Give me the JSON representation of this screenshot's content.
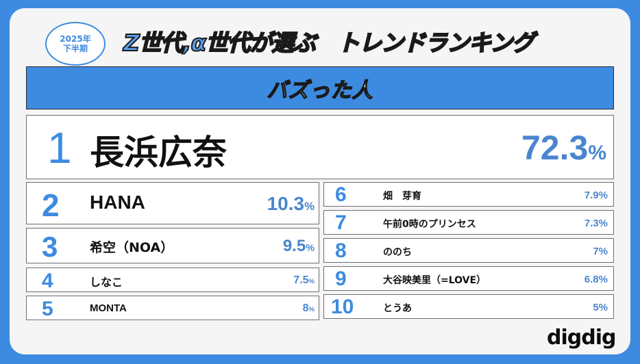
{
  "badge": {
    "year": "2025年",
    "period": "下半期"
  },
  "headline": "Z世代,α世代が選ぶ　トレンドランキング",
  "category": "バズった人",
  "rankings": [
    {
      "rank": "1",
      "name": "長浜広奈",
      "percent": "72.3",
      "unit": "%"
    },
    {
      "rank": "2",
      "name": "HANA",
      "percent": "10.3",
      "unit": "%"
    },
    {
      "rank": "3",
      "name": "希空（NOA）",
      "percent": "9.5",
      "unit": "%"
    },
    {
      "rank": "4",
      "name": "しなこ",
      "percent": "7.5",
      "unit": "%"
    },
    {
      "rank": "5",
      "name": "MONTA",
      "percent": "8",
      "unit": "%"
    },
    {
      "rank": "6",
      "name": "畑　芽育",
      "percent": "7.9",
      "unit": "%"
    },
    {
      "rank": "7",
      "name": "午前0時のプリンセス",
      "percent": "7.3",
      "unit": "%"
    },
    {
      "rank": "8",
      "name": "ののち",
      "percent": "7",
      "unit": "%"
    },
    {
      "rank": "9",
      "name": "大谷映美里（=LOVE）",
      "percent": "6.8",
      "unit": "%"
    },
    {
      "rank": "10",
      "name": "とうあ",
      "percent": "5",
      "unit": "%"
    }
  ],
  "logo": "digdig",
  "colors": {
    "accent": "#3d8be0",
    "percent_text": "#4a86cf",
    "background_card": "#f5f5f5"
  }
}
